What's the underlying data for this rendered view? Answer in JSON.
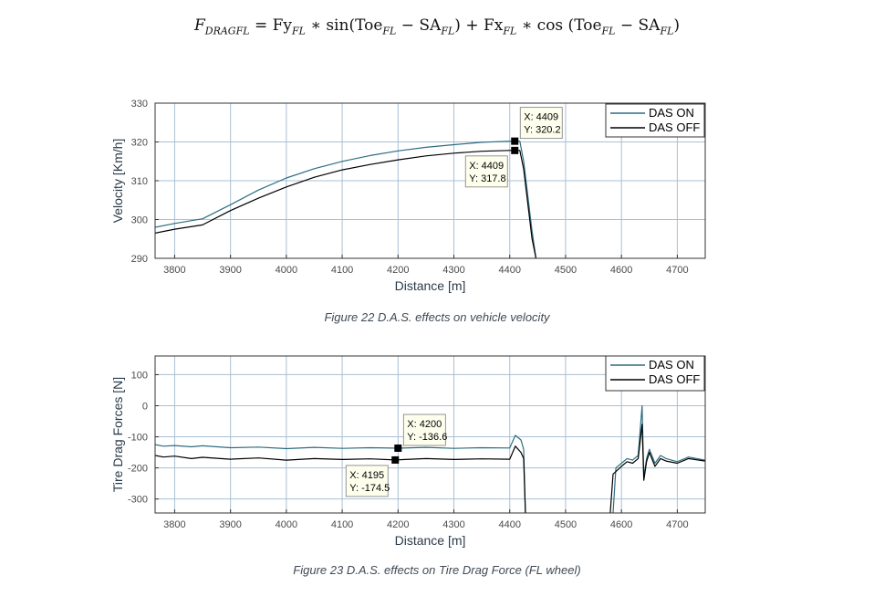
{
  "formula": {
    "lhs": "F",
    "lhs_sub": "DRAGFL",
    "t1": "Fy",
    "t1_sub": "FL",
    "t2": "sin(Toe",
    "t2_sub": "FL",
    "t3": "SA",
    "t3_sub": "FL",
    "t4": "Fx",
    "t4_sub": "FL",
    "t5": "cos (Toe",
    "t5_sub": "FL",
    "t6": "SA",
    "t6_sub": "FL"
  },
  "captions": {
    "fig22": "Figure 22 D.A.S. effects on vehicle velocity",
    "fig23": "Figure 23 D.A.S. effects on Tire Drag Force (FL wheel)"
  },
  "colors": {
    "das_on": "#2d6e80",
    "das_off": "#000000",
    "grid": "#a9c0d4",
    "axis": "#333333"
  },
  "chart_data": [
    {
      "type": "line",
      "xlabel": "Distance [m]",
      "ylabel": "Velocity [Km/h]",
      "xlim": [
        3765,
        4750
      ],
      "ylim": [
        290,
        330
      ],
      "xticks": [
        3800,
        3900,
        4000,
        4100,
        4200,
        4300,
        4400,
        4500,
        4600,
        4700
      ],
      "yticks": [
        290,
        300,
        310,
        320,
        330
      ],
      "grid": true,
      "legend_position": "top-right",
      "series": [
        {
          "name": "DAS ON",
          "x": [
            3765,
            3800,
            3850,
            3900,
            3950,
            4000,
            4050,
            4100,
            4150,
            4200,
            4250,
            4300,
            4350,
            4400,
            4409,
            4418,
            4425,
            4440,
            4447
          ],
          "y": [
            298.0,
            299.0,
            300.2,
            303.8,
            307.6,
            310.7,
            313.1,
            315.0,
            316.5,
            317.7,
            318.6,
            319.3,
            319.9,
            320.2,
            320.2,
            320.2,
            315.0,
            297.0,
            290.0
          ]
        },
        {
          "name": "DAS OFF",
          "x": [
            3765,
            3800,
            3850,
            3900,
            3950,
            4000,
            4050,
            4100,
            4150,
            4200,
            4250,
            4300,
            4350,
            4400,
            4409,
            4418,
            4425,
            4440,
            4447
          ],
          "y": [
            296.5,
            297.5,
            298.6,
            302.3,
            305.5,
            308.4,
            310.9,
            312.8,
            314.2,
            315.4,
            316.4,
            317.1,
            317.6,
            317.8,
            317.8,
            317.8,
            313.0,
            295.0,
            290.0
          ]
        }
      ],
      "datatips": [
        {
          "x": 4409,
          "y": 320.2,
          "x_text": "X: 4409",
          "y_text": "Y: 320.2",
          "series": "DAS ON",
          "placement": "above-right"
        },
        {
          "x": 4409,
          "y": 317.8,
          "x_text": "X: 4409",
          "y_text": "Y: 317.8",
          "series": "DAS OFF",
          "placement": "below-left"
        }
      ]
    },
    {
      "type": "line",
      "xlabel": "Distance [m]",
      "ylabel": "Tire Drag Forces [N]",
      "xlim": [
        3765,
        4750
      ],
      "ylim": [
        -345,
        160
      ],
      "xticks": [
        3800,
        3900,
        4000,
        4100,
        4200,
        4300,
        4400,
        4500,
        4600,
        4700
      ],
      "yticks": [
        100,
        0,
        -100,
        -200,
        -300
      ],
      "ytick_labels": [
        "100",
        "0",
        "-100",
        "-200",
        "-300"
      ],
      "grid": true,
      "legend_position": "top-right",
      "series": [
        {
          "name": "DAS ON",
          "segments": [
            {
              "x": [
                3765,
                3780,
                3800,
                3830,
                3850,
                3900,
                3950,
                4000,
                4050,
                4100,
                4150,
                4200,
                4250,
                4300,
                4350,
                4400,
                4410,
                4420,
                4425,
                4428
              ],
              "y": [
                -125,
                -130,
                -128,
                -132,
                -129,
                -135,
                -133,
                -138,
                -134,
                -137,
                -135,
                -136.6,
                -134,
                -137,
                -135,
                -136,
                -95,
                -110,
                -140,
                -345
              ]
            },
            {
              "x": [
                4585,
                4590,
                4600,
                4610,
                4620,
                4630,
                4637,
                4640,
                4645,
                4650,
                4660,
                4670,
                4680,
                4700,
                4720,
                4750
              ],
              "y": [
                -345,
                -200,
                -185,
                -170,
                -175,
                -160,
                0,
                -230,
                -170,
                -140,
                -185,
                -160,
                -170,
                -180,
                -165,
                -175
              ]
            }
          ]
        },
        {
          "name": "DAS OFF",
          "segments": [
            {
              "x": [
                3765,
                3780,
                3800,
                3830,
                3850,
                3900,
                3950,
                4000,
                4050,
                4100,
                4150,
                4195,
                4250,
                4300,
                4350,
                4400,
                4410,
                4420,
                4425,
                4428
              ],
              "y": [
                -160,
                -165,
                -162,
                -170,
                -166,
                -172,
                -168,
                -175,
                -170,
                -173,
                -171,
                -174.5,
                -170,
                -173,
                -171,
                -172,
                -130,
                -150,
                -170,
                -345
              ]
            },
            {
              "x": [
                4580,
                4585,
                4600,
                4610,
                4620,
                4630,
                4637,
                4640,
                4645,
                4650,
                4660,
                4670,
                4680,
                4700,
                4720,
                4750
              ],
              "y": [
                -345,
                -220,
                -195,
                -180,
                -185,
                -170,
                -60,
                -240,
                -180,
                -150,
                -195,
                -170,
                -178,
                -185,
                -170,
                -178
              ]
            }
          ]
        }
      ],
      "datatips": [
        {
          "x": 4200,
          "y": -136.6,
          "x_text": "X: 4200",
          "y_text": "Y: -136.6",
          "series": "DAS ON",
          "placement": "above-right"
        },
        {
          "x": 4195,
          "y": -174.5,
          "x_text": "X: 4195",
          "y_text": "Y: -174.5",
          "series": "DAS OFF",
          "placement": "below-left"
        }
      ]
    }
  ]
}
